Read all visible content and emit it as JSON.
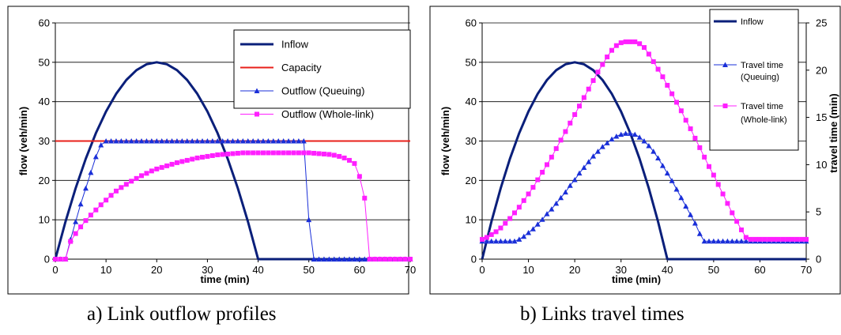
{
  "captions": {
    "a": "a) Link outflow profiles",
    "b": "b) Links travel times"
  },
  "chart_data": [
    {
      "type": "line",
      "xlabel": "time (min)",
      "ylabel": "flow  (veh/min)",
      "xlim": [
        0,
        70
      ],
      "ylim": [
        0,
        60
      ],
      "xticks": [
        0,
        10,
        20,
        30,
        40,
        50,
        60,
        70
      ],
      "yticks": [
        0,
        10,
        20,
        30,
        40,
        50,
        60
      ],
      "grid": "horizontal",
      "legend_position": "top-right",
      "series": [
        {
          "name": "Inflow",
          "color": "#0a1f7a",
          "marker": "none",
          "width": 3,
          "x": [
            0,
            2,
            4,
            6,
            8,
            10,
            12,
            14,
            16,
            18,
            20,
            22,
            24,
            26,
            28,
            30,
            32,
            34,
            36,
            38,
            40,
            42,
            44,
            46,
            48,
            50,
            52,
            54,
            56,
            58,
            60,
            62,
            64,
            66,
            68,
            70
          ],
          "y": [
            0,
            9.5,
            18,
            25.5,
            32,
            37.5,
            42,
            45.5,
            48,
            49.5,
            50,
            49.5,
            48,
            45.5,
            42,
            37.5,
            32,
            25.5,
            18,
            9.5,
            0,
            0,
            0,
            0,
            0,
            0,
            0,
            0,
            0,
            0,
            0,
            0,
            0,
            0,
            0,
            0
          ]
        },
        {
          "name": "Capacity",
          "color": "#e8201a",
          "marker": "none",
          "width": 2,
          "x": [
            0,
            70
          ],
          "y": [
            30,
            30
          ]
        },
        {
          "name": "Outflow (Queuing)",
          "color": "#1a2fd8",
          "marker": "triangle",
          "width": 1,
          "x": [
            0,
            1,
            2,
            3,
            4,
            5,
            6,
            7,
            8,
            9,
            10,
            11,
            12,
            13,
            14,
            15,
            16,
            17,
            18,
            19,
            20,
            21,
            22,
            23,
            24,
            25,
            26,
            27,
            28,
            29,
            30,
            31,
            32,
            33,
            34,
            35,
            36,
            37,
            38,
            39,
            40,
            41,
            42,
            43,
            44,
            45,
            46,
            47,
            48,
            49,
            50,
            51,
            52,
            53,
            54,
            55,
            56,
            57,
            58,
            59,
            60,
            61,
            62,
            63,
            64,
            65,
            66,
            67,
            68,
            69,
            70
          ],
          "y": [
            0,
            0,
            0,
            5,
            9.5,
            14,
            18,
            22,
            26,
            29,
            30,
            30,
            30,
            30,
            30,
            30,
            30,
            30,
            30,
            30,
            30,
            30,
            30,
            30,
            30,
            30,
            30,
            30,
            30,
            30,
            30,
            30,
            30,
            30,
            30,
            30,
            30,
            30,
            30,
            30,
            30,
            30,
            30,
            30,
            30,
            30,
            30,
            30,
            30,
            30,
            10,
            0,
            0,
            0,
            0,
            0,
            0,
            0,
            0,
            0,
            0,
            0,
            0,
            0,
            0,
            0,
            0,
            0,
            0,
            0,
            0
          ]
        },
        {
          "name": "Outflow (Whole-link)",
          "color": "#ff1fff",
          "marker": "square",
          "width": 1,
          "x": [
            0,
            1,
            2,
            3,
            4,
            5,
            6,
            7,
            8,
            9,
            10,
            11,
            12,
            13,
            14,
            15,
            16,
            17,
            18,
            19,
            20,
            21,
            22,
            23,
            24,
            25,
            26,
            27,
            28,
            29,
            30,
            31,
            32,
            33,
            34,
            35,
            36,
            37,
            38,
            39,
            40,
            41,
            42,
            43,
            44,
            45,
            46,
            47,
            48,
            49,
            50,
            51,
            52,
            53,
            54,
            55,
            56,
            57,
            58,
            59,
            60,
            61,
            62,
            63,
            64,
            65,
            66,
            67,
            68,
            69,
            70
          ],
          "y": [
            0,
            0,
            0,
            4.5,
            6.5,
            8.2,
            9.8,
            11.2,
            12.5,
            13.8,
            15,
            16.2,
            17.3,
            18.2,
            19,
            19.8,
            20.5,
            21.2,
            21.8,
            22.4,
            22.9,
            23.3,
            23.7,
            24.1,
            24.5,
            24.8,
            25.1,
            25.4,
            25.7,
            25.9,
            26.1,
            26.3,
            26.5,
            26.6,
            26.7,
            26.8,
            26.9,
            27,
            27,
            27,
            27,
            27,
            27,
            27,
            27,
            27,
            27,
            27,
            27,
            27,
            27,
            26.9,
            26.8,
            26.7,
            26.6,
            26.4,
            26.1,
            25.7,
            25.1,
            24.3,
            21,
            15.5,
            0,
            0,
            0,
            0,
            0,
            0,
            0,
            0,
            0
          ]
        }
      ]
    },
    {
      "type": "line",
      "xlabel": "time (min)",
      "ylabel": "flow  (veh/min)",
      "y2label": "travel time (min)",
      "xlim": [
        0,
        70
      ],
      "ylim": [
        0,
        60
      ],
      "y2lim": [
        0,
        25
      ],
      "xticks": [
        0,
        10,
        20,
        30,
        40,
        50,
        60,
        70
      ],
      "yticks": [
        0,
        10,
        20,
        30,
        40,
        50,
        60
      ],
      "y2ticks": [
        0,
        5,
        10,
        15,
        20,
        25
      ],
      "grid": "horizontal",
      "legend_position": "top-right",
      "series": [
        {
          "name": "Inflow",
          "axis": "left",
          "color": "#0a1f7a",
          "marker": "none",
          "width": 3,
          "x": [
            0,
            2,
            4,
            6,
            8,
            10,
            12,
            14,
            16,
            18,
            20,
            22,
            24,
            26,
            28,
            30,
            32,
            34,
            36,
            38,
            40,
            42,
            44,
            46,
            48,
            50,
            52,
            54,
            56,
            58,
            60,
            62,
            64,
            66,
            68,
            70
          ],
          "y": [
            0,
            9.5,
            18,
            25.5,
            32,
            37.5,
            42,
            45.5,
            48,
            49.5,
            50,
            49.5,
            48,
            45.5,
            42,
            37.5,
            32,
            25.5,
            18,
            9.5,
            0,
            0,
            0,
            0,
            0,
            0,
            0,
            0,
            0,
            0,
            0,
            0,
            0,
            0,
            0,
            0
          ]
        },
        {
          "name": "Travel time (Queuing)",
          "axis": "right",
          "color": "#1a2fd8",
          "marker": "triangle",
          "width": 1,
          "x": [
            0,
            1,
            2,
            3,
            4,
            5,
            6,
            7,
            8,
            9,
            10,
            11,
            12,
            13,
            14,
            15,
            16,
            17,
            18,
            19,
            20,
            21,
            22,
            23,
            24,
            25,
            26,
            27,
            28,
            29,
            30,
            31,
            32,
            33,
            34,
            35,
            36,
            37,
            38,
            39,
            40,
            41,
            42,
            43,
            44,
            45,
            46,
            47,
            48,
            49,
            50,
            51,
            52,
            53,
            54,
            55,
            56,
            57,
            58,
            59,
            60,
            61,
            62,
            63,
            64,
            65,
            66,
            67,
            68,
            69,
            70
          ],
          "y": [
            1.9,
            1.9,
            1.9,
            1.9,
            1.9,
            1.9,
            1.9,
            1.9,
            2.1,
            2.4,
            2.8,
            3.2,
            3.7,
            4.2,
            4.8,
            5.3,
            5.9,
            6.5,
            7.1,
            7.8,
            8.4,
            9.1,
            9.7,
            10.3,
            10.9,
            11.4,
            11.9,
            12.3,
            12.7,
            13,
            13.2,
            13.3,
            13.3,
            13.2,
            12.9,
            12.5,
            12,
            11.4,
            10.7,
            9.9,
            9.1,
            8.3,
            7.4,
            6.5,
            5.6,
            4.7,
            3.8,
            2.7,
            1.9,
            1.9,
            1.9,
            1.9,
            1.9,
            1.9,
            1.9,
            1.9,
            1.9,
            1.9,
            1.9,
            1.9,
            1.9,
            1.9,
            1.9,
            1.9,
            1.9,
            1.9,
            1.9,
            1.9,
            1.9,
            1.9,
            1.9
          ]
        },
        {
          "name": "Travel time (Whole-link)",
          "axis": "right",
          "color": "#ff1fff",
          "marker": "square",
          "width": 1,
          "x": [
            0,
            1,
            2,
            3,
            4,
            5,
            6,
            7,
            8,
            9,
            10,
            11,
            12,
            13,
            14,
            15,
            16,
            17,
            18,
            19,
            20,
            21,
            22,
            23,
            24,
            25,
            26,
            27,
            28,
            29,
            30,
            31,
            32,
            33,
            34,
            35,
            36,
            37,
            38,
            39,
            40,
            41,
            42,
            43,
            44,
            45,
            46,
            47,
            48,
            49,
            50,
            51,
            52,
            53,
            54,
            55,
            56,
            57,
            58,
            59,
            60,
            61,
            62,
            63,
            64,
            65,
            66,
            67,
            68,
            69,
            70
          ],
          "y": [
            2.1,
            2.3,
            2.6,
            2.9,
            3.3,
            3.8,
            4.3,
            4.9,
            5.5,
            6.2,
            6.9,
            7.6,
            8.4,
            9.2,
            10,
            10.8,
            11.7,
            12.6,
            13.5,
            14.4,
            15.3,
            16.2,
            17.1,
            18,
            18.9,
            19.8,
            20.6,
            21.4,
            22.1,
            22.6,
            22.9,
            23,
            23,
            23,
            22.8,
            22.4,
            21.7,
            20.9,
            20.1,
            19.3,
            18.4,
            17.5,
            16.6,
            15.7,
            14.7,
            13.8,
            12.8,
            11.8,
            10.8,
            9.8,
            8.9,
            7.9,
            6.9,
            5.9,
            4.9,
            4,
            3.1,
            2.3,
            2.1,
            2.1,
            2.1,
            2.1,
            2.1,
            2.1,
            2.1,
            2.1,
            2.1,
            2.1,
            2.1,
            2.1,
            2.1
          ]
        }
      ]
    }
  ]
}
